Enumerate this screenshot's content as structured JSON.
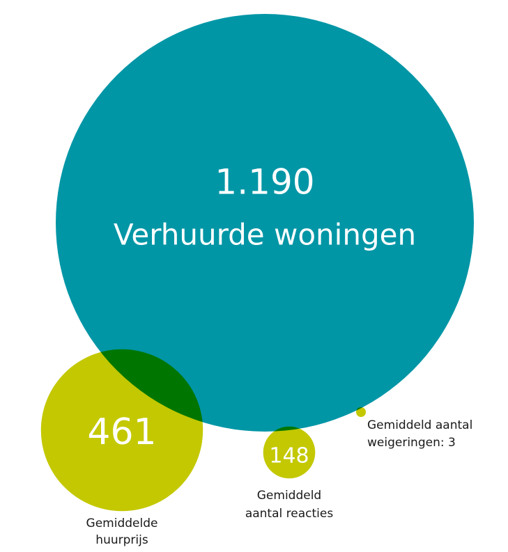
{
  "chart_data": {
    "type": "bubble",
    "categories": [
      [
        "Verhuurde woningen"
      ],
      [
        "Gemiddelde",
        "huurprijs"
      ],
      [
        "Gemiddeld",
        "aantal reacties"
      ],
      [
        "Gemiddeld aantal",
        "weigeringen: 3"
      ]
    ],
    "values": [
      1190,
      461,
      148,
      3
    ],
    "value_labels": [
      "1.190",
      "461",
      "148",
      null
    ],
    "colors": [
      "#0096a6",
      "#c3c800",
      "#c3c800",
      "#c3c800"
    ]
  }
}
